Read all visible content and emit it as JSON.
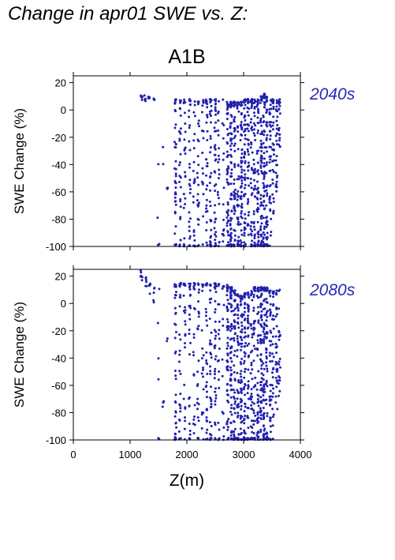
{
  "page": {
    "title": "Change in apr01 SWE vs. Z:",
    "scenario": "A1B"
  },
  "colors": {
    "points": "#2020b0",
    "period_label": "#2828b8",
    "axes": "#000000"
  },
  "chart_data": [
    {
      "type": "scatter",
      "period": "2040s",
      "xlabel": "",
      "ylabel": "SWE Change (%)",
      "xlim": [
        0,
        4000
      ],
      "ylim": [
        -100,
        25
      ],
      "xticks": [],
      "yticks": [
        -100,
        -80,
        -60,
        -40,
        -20,
        0,
        20
      ],
      "grid": false,
      "series": [
        {
          "columns": [
            {
              "x": 1200,
              "ymin": 5,
              "ymax": 12,
              "n": 6
            },
            {
              "x": 1260,
              "ymin": 6,
              "ymax": 11,
              "n": 5
            },
            {
              "x": 1330,
              "ymin": 7,
              "ymax": 10,
              "n": 4
            },
            {
              "x": 1420,
              "ymin": 7,
              "ymax": 10,
              "n": 4
            },
            {
              "x": 1500,
              "ymin": -100,
              "ymax": -25,
              "n": 4
            },
            {
              "x": 1580,
              "ymin": -40,
              "ymax": -25,
              "n": 2
            },
            {
              "x": 1650,
              "ymin": -70,
              "ymax": -45,
              "n": 3
            },
            {
              "x": 1800,
              "ymin": -100,
              "ymax": 8,
              "n": 40
            },
            {
              "x": 1880,
              "ymin": -100,
              "ymax": 8,
              "n": 30
            },
            {
              "x": 1960,
              "ymin": -100,
              "ymax": 8,
              "n": 25
            },
            {
              "x": 2050,
              "ymin": -100,
              "ymax": 8,
              "n": 28
            },
            {
              "x": 2130,
              "ymin": -100,
              "ymax": 8,
              "n": 22
            },
            {
              "x": 2200,
              "ymin": -100,
              "ymax": 8,
              "n": 25
            },
            {
              "x": 2280,
              "ymin": -100,
              "ymax": 8,
              "n": 18
            },
            {
              "x": 2350,
              "ymin": -100,
              "ymax": 8,
              "n": 30
            },
            {
              "x": 2420,
              "ymin": -100,
              "ymax": 8,
              "n": 35
            },
            {
              "x": 2500,
              "ymin": -100,
              "ymax": 8,
              "n": 40
            },
            {
              "x": 2560,
              "ymin": -100,
              "ymax": 8,
              "n": 20
            },
            {
              "x": 2640,
              "ymin": -100,
              "ymax": 8,
              "n": 15
            },
            {
              "x": 2720,
              "ymin": -100,
              "ymax": 6,
              "n": 55
            },
            {
              "x": 2780,
              "ymin": -100,
              "ymax": 6,
              "n": 65
            },
            {
              "x": 2840,
              "ymin": -100,
              "ymax": 6,
              "n": 55
            },
            {
              "x": 2900,
              "ymin": -100,
              "ymax": 6,
              "n": 45
            },
            {
              "x": 2960,
              "ymin": -100,
              "ymax": 6,
              "n": 65
            },
            {
              "x": 3020,
              "ymin": -100,
              "ymax": 8,
              "n": 60
            },
            {
              "x": 3080,
              "ymin": -100,
              "ymax": 8,
              "n": 45
            },
            {
              "x": 3140,
              "ymin": -100,
              "ymax": 8,
              "n": 40
            },
            {
              "x": 3190,
              "ymin": -100,
              "ymax": 8,
              "n": 45
            },
            {
              "x": 3250,
              "ymin": -100,
              "ymax": 8,
              "n": 50
            },
            {
              "x": 3310,
              "ymin": -100,
              "ymax": 10,
              "n": 65
            },
            {
              "x": 3360,
              "ymin": -100,
              "ymax": 12,
              "n": 70
            },
            {
              "x": 3410,
              "ymin": -100,
              "ymax": 10,
              "n": 55
            },
            {
              "x": 3470,
              "ymin": -100,
              "ymax": 8,
              "n": 40
            },
            {
              "x": 3520,
              "ymin": -80,
              "ymax": 8,
              "n": 35
            },
            {
              "x": 3580,
              "ymin": -60,
              "ymax": 8,
              "n": 30
            },
            {
              "x": 3630,
              "ymin": -30,
              "ymax": 8,
              "n": 20
            }
          ]
        }
      ]
    },
    {
      "type": "scatter",
      "period": "2080s",
      "xlabel": "Z(m)",
      "ylabel": "SWE Change (%)",
      "xlim": [
        0,
        4000
      ],
      "ylim": [
        -100,
        25
      ],
      "xticks": [
        0,
        1000,
        2000,
        3000,
        4000
      ],
      "yticks": [
        -100,
        -80,
        -60,
        -40,
        -20,
        0,
        20
      ],
      "grid": false,
      "series": [
        {
          "columns": [
            {
              "x": 1200,
              "ymin": 15,
              "ymax": 25,
              "n": 6
            },
            {
              "x": 1280,
              "ymin": 10,
              "ymax": 20,
              "n": 6
            },
            {
              "x": 1350,
              "ymin": 5,
              "ymax": 18,
              "n": 5
            },
            {
              "x": 1420,
              "ymin": 0,
              "ymax": 18,
              "n": 5
            },
            {
              "x": 1500,
              "ymin": -100,
              "ymax": 15,
              "n": 6
            },
            {
              "x": 1580,
              "ymin": -80,
              "ymax": -70,
              "n": 3
            },
            {
              "x": 1650,
              "ymin": -40,
              "ymax": -25,
              "n": 2
            },
            {
              "x": 1800,
              "ymin": -100,
              "ymax": 15,
              "n": 40
            },
            {
              "x": 1880,
              "ymin": -100,
              "ymax": 15,
              "n": 30
            },
            {
              "x": 1960,
              "ymin": -100,
              "ymax": 15,
              "n": 25
            },
            {
              "x": 2050,
              "ymin": -100,
              "ymax": 15,
              "n": 28
            },
            {
              "x": 2130,
              "ymin": -100,
              "ymax": 15,
              "n": 22
            },
            {
              "x": 2200,
              "ymin": -100,
              "ymax": 15,
              "n": 25
            },
            {
              "x": 2280,
              "ymin": -100,
              "ymax": 15,
              "n": 18
            },
            {
              "x": 2350,
              "ymin": -100,
              "ymax": 15,
              "n": 30
            },
            {
              "x": 2420,
              "ymin": -100,
              "ymax": 15,
              "n": 35
            },
            {
              "x": 2500,
              "ymin": -100,
              "ymax": 15,
              "n": 40
            },
            {
              "x": 2560,
              "ymin": -100,
              "ymax": 15,
              "n": 20
            },
            {
              "x": 2640,
              "ymin": -100,
              "ymax": 15,
              "n": 15
            },
            {
              "x": 2720,
              "ymin": -100,
              "ymax": 14,
              "n": 55
            },
            {
              "x": 2780,
              "ymin": -100,
              "ymax": 12,
              "n": 65
            },
            {
              "x": 2840,
              "ymin": -100,
              "ymax": 10,
              "n": 55
            },
            {
              "x": 2900,
              "ymin": -100,
              "ymax": 8,
              "n": 45
            },
            {
              "x": 2960,
              "ymin": -100,
              "ymax": 6,
              "n": 65
            },
            {
              "x": 3020,
              "ymin": -100,
              "ymax": 8,
              "n": 60
            },
            {
              "x": 3080,
              "ymin": -100,
              "ymax": 8,
              "n": 45
            },
            {
              "x": 3140,
              "ymin": -100,
              "ymax": 10,
              "n": 40
            },
            {
              "x": 3190,
              "ymin": -100,
              "ymax": 12,
              "n": 45
            },
            {
              "x": 3250,
              "ymin": -100,
              "ymax": 12,
              "n": 50
            },
            {
              "x": 3310,
              "ymin": -100,
              "ymax": 12,
              "n": 65
            },
            {
              "x": 3360,
              "ymin": -100,
              "ymax": 12,
              "n": 70
            },
            {
              "x": 3410,
              "ymin": -100,
              "ymax": 12,
              "n": 55
            },
            {
              "x": 3470,
              "ymin": -100,
              "ymax": 10,
              "n": 40
            },
            {
              "x": 3520,
              "ymin": -95,
              "ymax": 10,
              "n": 35
            },
            {
              "x": 3580,
              "ymin": -80,
              "ymax": 10,
              "n": 30
            },
            {
              "x": 3630,
              "ymin": -70,
              "ymax": 10,
              "n": 20
            }
          ]
        }
      ]
    }
  ]
}
